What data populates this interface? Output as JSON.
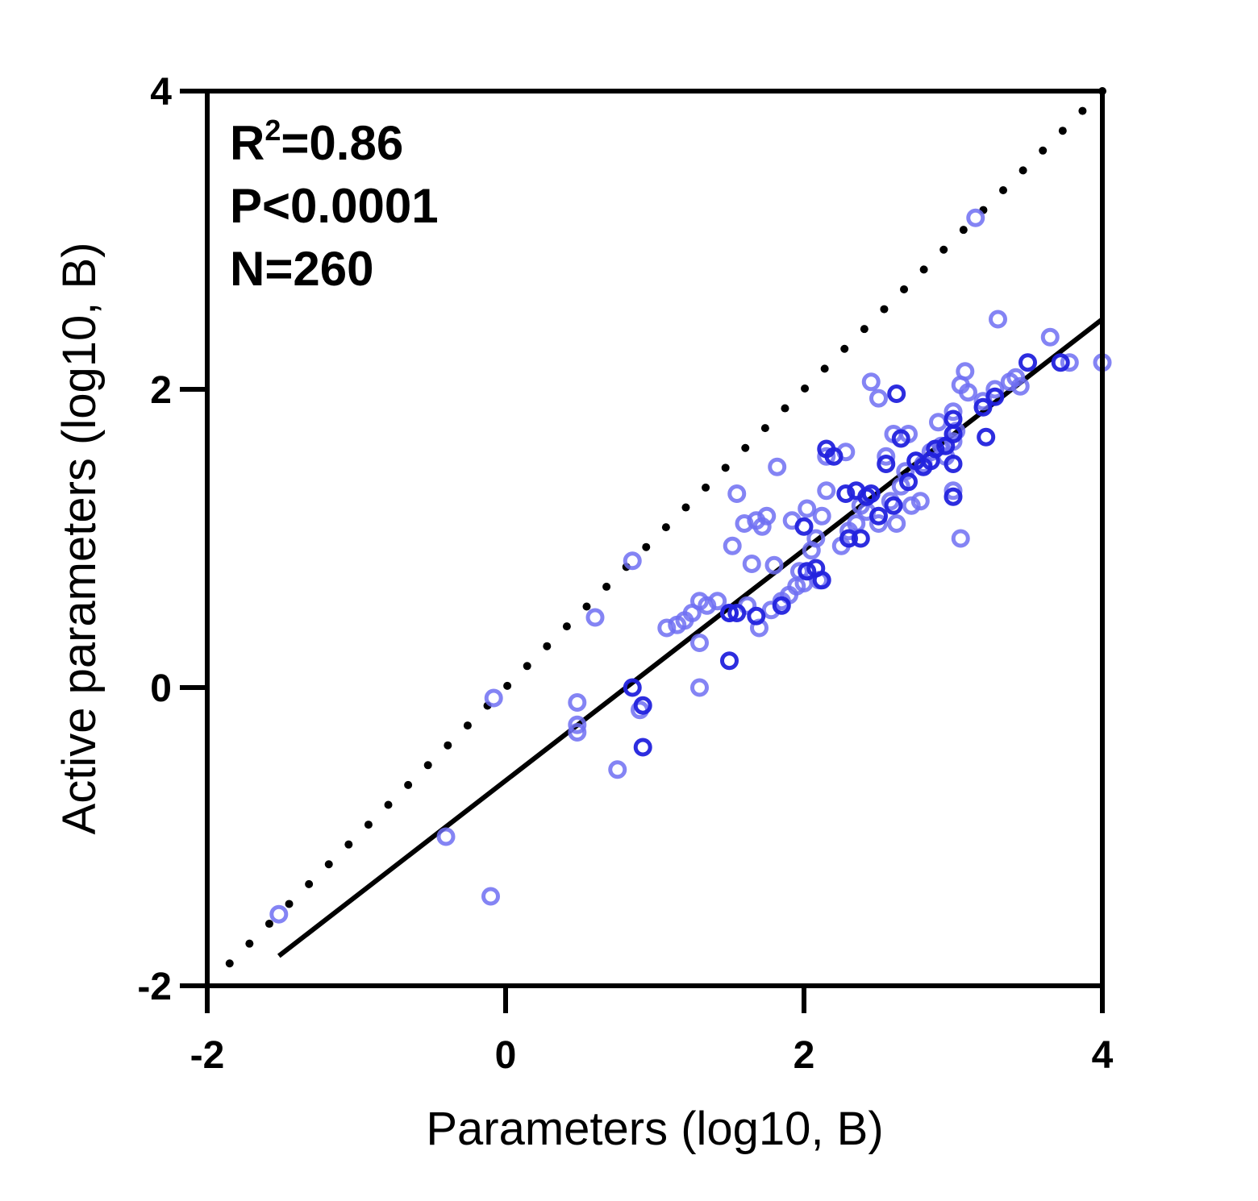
{
  "chart_data": {
    "type": "scatter",
    "xlabel": "Parameters (log10, B)",
    "ylabel": "Active parameters (log10, B)",
    "xlim": [
      -2,
      4
    ],
    "ylim": [
      -2,
      4
    ],
    "xticks": [
      "-2",
      "0",
      "2",
      "4"
    ],
    "yticks": [
      "-2",
      "0",
      "2",
      "4"
    ],
    "annotations": {
      "r2_base": "R",
      "r2_sup": "2",
      "r2_value": "=0.86",
      "p_value": "P<0.0001",
      "n_value": "N=260"
    },
    "marker_colors": {
      "light": "#6f6ff2",
      "dark": "#2222dd"
    },
    "reference_line": {
      "style": "dotted",
      "from": [
        -1.85,
        -1.85
      ],
      "to": [
        4,
        4
      ]
    },
    "fit_line": {
      "style": "solid",
      "from": [
        -1.52,
        -1.8
      ],
      "to": [
        4,
        2.47
      ]
    },
    "points_light": [
      [
        -1.52,
        -1.52
      ],
      [
        -0.4,
        -1.0
      ],
      [
        -0.1,
        -1.4
      ],
      [
        -0.08,
        -0.07
      ],
      [
        0.48,
        -0.1
      ],
      [
        0.48,
        -0.25
      ],
      [
        0.48,
        -0.3
      ],
      [
        0.6,
        0.47
      ],
      [
        0.75,
        -0.55
      ],
      [
        0.85,
        0.85
      ],
      [
        0.9,
        -0.15
      ],
      [
        1.08,
        0.4
      ],
      [
        1.15,
        0.42
      ],
      [
        1.2,
        0.45
      ],
      [
        1.25,
        0.5
      ],
      [
        1.3,
        0.58
      ],
      [
        1.3,
        0.3
      ],
      [
        1.3,
        0.0
      ],
      [
        1.35,
        0.55
      ],
      [
        1.42,
        0.58
      ],
      [
        1.5,
        0.5
      ],
      [
        1.55,
        1.3
      ],
      [
        1.52,
        0.95
      ],
      [
        1.6,
        1.1
      ],
      [
        1.62,
        0.55
      ],
      [
        1.65,
        0.83
      ],
      [
        1.68,
        1.12
      ],
      [
        1.7,
        0.4
      ],
      [
        1.72,
        1.08
      ],
      [
        1.75,
        1.15
      ],
      [
        1.78,
        0.52
      ],
      [
        1.8,
        0.82
      ],
      [
        1.82,
        1.48
      ],
      [
        1.85,
        0.58
      ],
      [
        1.9,
        0.62
      ],
      [
        1.92,
        1.12
      ],
      [
        1.95,
        0.68
      ],
      [
        1.97,
        0.78
      ],
      [
        2.0,
        0.7
      ],
      [
        2.02,
        1.2
      ],
      [
        2.05,
        0.92
      ],
      [
        2.08,
        1.0
      ],
      [
        2.1,
        0.72
      ],
      [
        2.12,
        1.15
      ],
      [
        2.15,
        1.32
      ],
      [
        2.15,
        1.55
      ],
      [
        2.25,
        0.95
      ],
      [
        2.28,
        1.58
      ],
      [
        2.3,
        1.05
      ],
      [
        2.35,
        1.1
      ],
      [
        2.38,
        1.22
      ],
      [
        2.42,
        1.18
      ],
      [
        2.45,
        2.05
      ],
      [
        2.5,
        1.94
      ],
      [
        2.5,
        1.1
      ],
      [
        2.55,
        1.55
      ],
      [
        2.58,
        1.25
      ],
      [
        2.6,
        1.7
      ],
      [
        2.62,
        1.1
      ],
      [
        2.65,
        1.35
      ],
      [
        2.68,
        1.45
      ],
      [
        2.7,
        1.7
      ],
      [
        2.72,
        1.22
      ],
      [
        2.75,
        1.52
      ],
      [
        2.78,
        1.25
      ],
      [
        2.8,
        1.5
      ],
      [
        2.85,
        1.58
      ],
      [
        2.9,
        1.78
      ],
      [
        2.92,
        1.62
      ],
      [
        2.95,
        1.55
      ],
      [
        3.0,
        1.85
      ],
      [
        3.0,
        1.65
      ],
      [
        3.0,
        1.32
      ],
      [
        3.02,
        1.72
      ],
      [
        3.05,
        1.0
      ],
      [
        3.05,
        2.03
      ],
      [
        3.08,
        2.12
      ],
      [
        3.1,
        1.98
      ],
      [
        3.15,
        3.15
      ],
      [
        3.2,
        1.92
      ],
      [
        3.28,
        2.0
      ],
      [
        3.3,
        2.47
      ],
      [
        3.38,
        2.05
      ],
      [
        3.42,
        2.08
      ],
      [
        3.45,
        2.02
      ],
      [
        3.65,
        2.35
      ],
      [
        3.78,
        2.18
      ],
      [
        4.0,
        2.18
      ]
    ],
    "points_dark": [
      [
        0.85,
        0.0
      ],
      [
        0.92,
        -0.12
      ],
      [
        0.92,
        -0.4
      ],
      [
        1.5,
        0.18
      ],
      [
        1.5,
        0.5
      ],
      [
        1.55,
        0.5
      ],
      [
        1.68,
        0.48
      ],
      [
        1.85,
        0.55
      ],
      [
        2.0,
        1.08
      ],
      [
        2.02,
        0.78
      ],
      [
        2.08,
        0.8
      ],
      [
        2.12,
        0.72
      ],
      [
        2.15,
        1.6
      ],
      [
        2.2,
        1.55
      ],
      [
        2.28,
        1.3
      ],
      [
        2.3,
        1.0
      ],
      [
        2.35,
        1.32
      ],
      [
        2.38,
        1.0
      ],
      [
        2.42,
        1.28
      ],
      [
        2.45,
        1.3
      ],
      [
        2.5,
        1.15
      ],
      [
        2.55,
        1.5
      ],
      [
        2.6,
        1.22
      ],
      [
        2.62,
        1.97
      ],
      [
        2.65,
        1.67
      ],
      [
        2.7,
        1.38
      ],
      [
        2.75,
        1.52
      ],
      [
        2.8,
        1.48
      ],
      [
        2.85,
        1.52
      ],
      [
        2.88,
        1.6
      ],
      [
        2.95,
        1.62
      ],
      [
        3.0,
        1.8
      ],
      [
        3.0,
        1.7
      ],
      [
        3.0,
        1.5
      ],
      [
        3.0,
        1.28
      ],
      [
        3.2,
        1.88
      ],
      [
        3.22,
        1.68
      ],
      [
        3.28,
        1.95
      ],
      [
        3.5,
        2.18
      ],
      [
        3.72,
        2.18
      ]
    ]
  }
}
